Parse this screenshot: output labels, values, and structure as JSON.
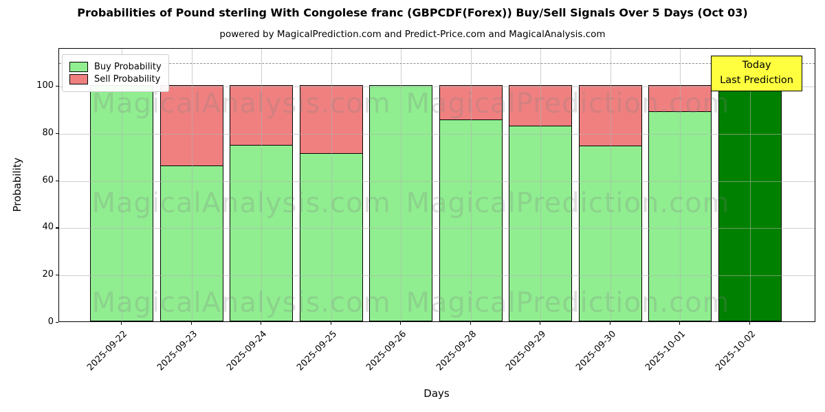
{
  "title": "Probabilities of Pound sterling With Congolese franc (GBPCDF(Forex)) Buy/Sell Signals Over 5 Days (Oct 03)",
  "subtitle": "powered by MagicalPrediction.com and Predict-Price.com and MagicalAnalysis.com",
  "annotation": {
    "line1": "Today",
    "line2": "Last Prediction"
  },
  "watermarks": {
    "left": "MagicalAnalysis.com",
    "right": "MagicalPrediction.com"
  },
  "legend": [
    {
      "label": "Buy Probability",
      "color": "#90EE90"
    },
    {
      "label": "Sell Probability",
      "color": "#F08080"
    }
  ],
  "colors": {
    "buy": "#90EE90",
    "sell": "#F08080",
    "today_bar": "#008000",
    "annotation_bg": "#FFFF40",
    "dashed_line": "#8a8a8a",
    "grid": "#b0b0b0",
    "bar_edge": "#000000"
  },
  "chart_data": {
    "type": "bar",
    "stacked": true,
    "title": "Probabilities of Pound sterling With Congolese franc (GBPCDF(Forex)) Buy/Sell Signals Over 5 Days (Oct 03)",
    "xlabel": "Days",
    "ylabel": "Probability",
    "categories": [
      "2025-09-22",
      "2025-09-23",
      "2025-09-24",
      "2025-09-25",
      "2025-09-26",
      "2025-09-28",
      "2025-09-29",
      "2025-09-30",
      "2025-10-01",
      "2025-10-02"
    ],
    "series": [
      {
        "name": "Buy Probability",
        "color": "#90EE90",
        "values": [
          100,
          66,
          75,
          71.5,
          100,
          85.5,
          83,
          74.5,
          89,
          100
        ]
      },
      {
        "name": "Sell Probability",
        "color": "#F08080",
        "values": [
          0,
          34,
          25,
          28.5,
          0,
          14.5,
          17,
          25.5,
          11,
          0
        ]
      }
    ],
    "today_bar": {
      "category": "2025-10-02",
      "color": "#008000"
    },
    "yticks": [
      0,
      20,
      40,
      60,
      80,
      100
    ],
    "ylim": [
      0,
      116
    ],
    "threshold_line_y": 110,
    "grid": true,
    "legend_position": "upper left"
  }
}
